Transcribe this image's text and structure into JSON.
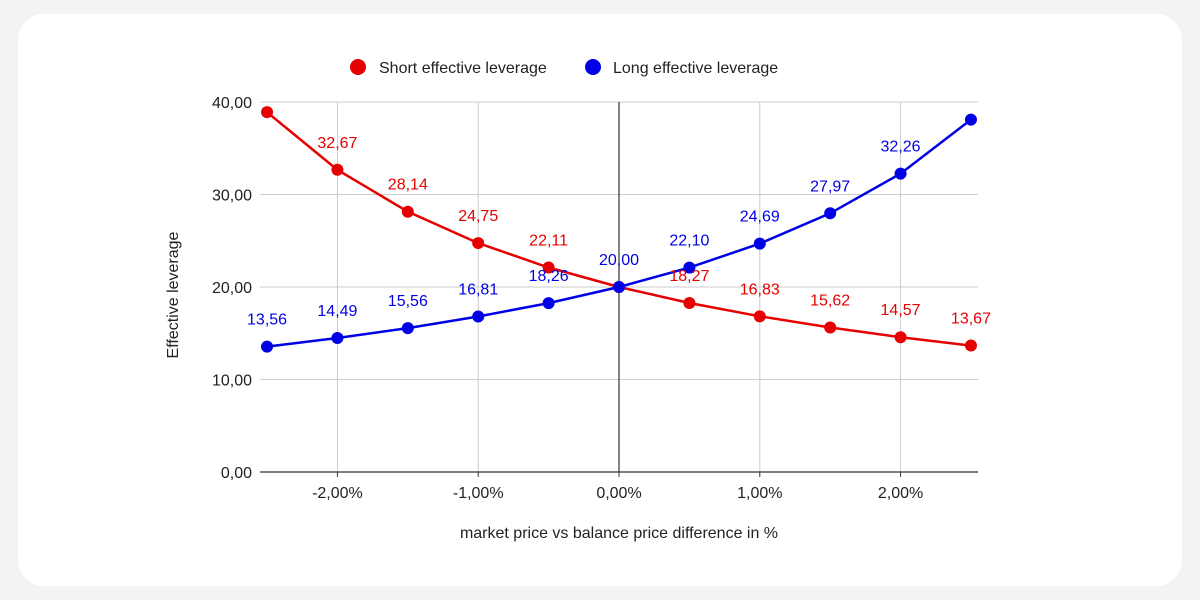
{
  "chart_data": {
    "type": "line",
    "xlabel": "market price vs balance price difference in %",
    "ylabel": "Effective leverage",
    "x": [
      -2.5,
      -2.0,
      -1.5,
      -1.0,
      -0.5,
      0.0,
      0.5,
      1.0,
      1.5,
      2.0,
      2.5
    ],
    "x_ticks": [
      -2,
      -1,
      0,
      1,
      2
    ],
    "x_tick_labels": [
      "-2,00%",
      "-1,00%",
      "0,00%",
      "1,00%",
      "2,00%"
    ],
    "xlim": [
      -2.55,
      2.55
    ],
    "y_ticks": [
      0,
      10,
      20,
      30,
      40
    ],
    "y_tick_labels": [
      "0,00",
      "10,00",
      "20,00",
      "30,00",
      "40,00"
    ],
    "ylim": [
      0,
      40
    ],
    "grid": true,
    "legend_position": "top",
    "series": [
      {
        "name": "Short effective leverage",
        "color": "#e60000",
        "values": [
          38.9,
          32.67,
          28.14,
          24.75,
          22.11,
          20.0,
          18.27,
          16.83,
          15.62,
          14.57,
          13.67
        ],
        "labels": [
          "",
          "32,67",
          "28,14",
          "24,75",
          "22,11",
          "",
          "18,27",
          "16,83",
          "15,62",
          "14,57",
          "13,67"
        ]
      },
      {
        "name": "Long effective leverage",
        "color": "#0000e6",
        "values": [
          13.56,
          14.49,
          15.56,
          16.81,
          18.26,
          20.0,
          22.1,
          24.69,
          27.97,
          32.26,
          38.1
        ],
        "labels": [
          "13,56",
          "14,49",
          "15,56",
          "16,81",
          "18,26",
          "20,00",
          "22,10",
          "24,69",
          "27,97",
          "32,26",
          ""
        ]
      }
    ]
  }
}
